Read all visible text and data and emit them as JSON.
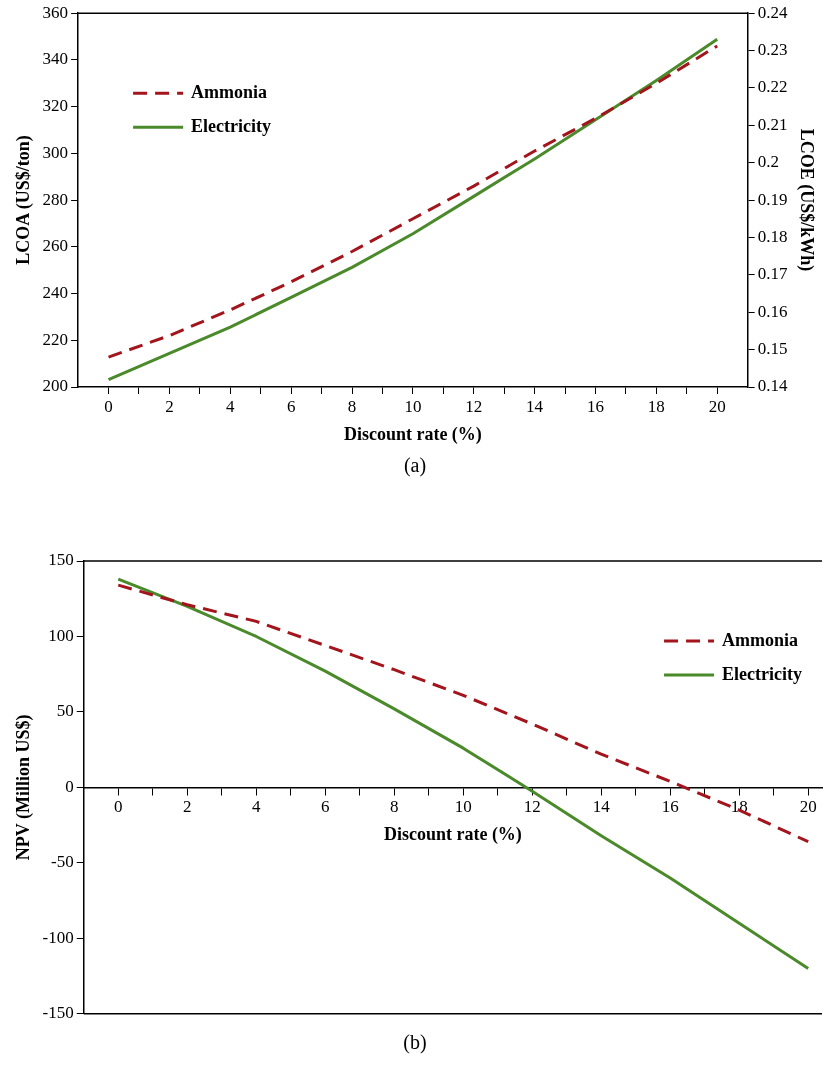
{
  "chart_data": [
    {
      "type": "line",
      "annotations": [
        "(a)"
      ],
      "xlabel": "Discount rate (%)",
      "ylabel": "LCOA (US$/ton)",
      "y2label": "LCOE (US$/kWh)",
      "x": [
        0,
        2,
        4,
        6,
        8,
        10,
        12,
        14,
        16,
        18,
        20
      ],
      "xlim": [
        -1,
        21
      ],
      "xticks": [
        0,
        {
          "value": 1,
          "label": null
        },
        2,
        {
          "value": 3,
          "label": null
        },
        4,
        {
          "value": 5,
          "label": null
        },
        6,
        {
          "value": 7,
          "label": null
        },
        8,
        {
          "value": 9,
          "label": null
        },
        10,
        {
          "value": 11,
          "label": null
        },
        12,
        {
          "value": 13,
          "label": null
        },
        14,
        {
          "value": 15,
          "label": null
        },
        16,
        {
          "value": 17,
          "label": null
        },
        18,
        {
          "value": 19,
          "label": null
        },
        20
      ],
      "ylim": [
        200,
        360
      ],
      "yticks": [
        200,
        220,
        240,
        260,
        280,
        300,
        320,
        340,
        360
      ],
      "y2lim": [
        0.14,
        0.24
      ],
      "y2ticks": [
        0.14,
        0.15,
        0.16,
        0.17,
        0.18,
        0.19,
        0.2,
        0.21,
        0.22,
        0.23,
        0.24
      ],
      "legend": "top left",
      "grid": false,
      "marker": "none",
      "series": [
        {
          "name": "Ammonia",
          "color": "#a3151d",
          "line_style": "dashed",
          "values": [
            212.8,
            222,
            233,
            245,
            258,
            272,
            286,
            301,
            315,
            330,
            346
          ]
        },
        {
          "name": "Electricity",
          "color": "#4a8a2a",
          "line_style": "solid",
          "axis": "y2",
          "values": [
            0.142,
            0.149,
            0.156,
            0.164,
            0.172,
            0.181,
            0.191,
            0.201,
            0.2115,
            0.222,
            0.233
          ]
        }
      ]
    },
    {
      "type": "line",
      "annotations": [
        "(b)"
      ],
      "xlabel": "Discount rate (%)",
      "ylabel": "NPV (Million US$)",
      "x": [
        0,
        2,
        4,
        6,
        8,
        10,
        12,
        14,
        16,
        18,
        20
      ],
      "xlim": [
        -1,
        20.4
      ],
      "xticks": [
        0,
        {
          "value": 1,
          "label": null
        },
        2,
        {
          "value": 3,
          "label": null
        },
        4,
        {
          "value": 5,
          "label": null
        },
        6,
        {
          "value": 7,
          "label": null
        },
        8,
        {
          "value": 9,
          "label": null
        },
        10,
        {
          "value": 11,
          "label": null
        },
        12,
        {
          "value": 13,
          "label": null
        },
        14,
        {
          "value": 15,
          "label": null
        },
        16,
        {
          "value": 17,
          "label": null
        },
        18,
        {
          "value": 19,
          "label": null
        },
        20
      ],
      "ylim": [
        -150,
        150
      ],
      "yticks": [
        -150,
        -100,
        -50,
        0,
        50,
        100,
        150
      ],
      "legend": "top right",
      "grid": false,
      "marker": "none",
      "series": [
        {
          "name": "Ammonia",
          "color": "#a3151d",
          "line_style": "dashed",
          "values": [
            134,
            121,
            110,
            94,
            78,
            61,
            42,
            22,
            4,
            -15,
            -36
          ]
        },
        {
          "name": "Electricity",
          "color": "#4a8a2a",
          "line_style": "solid",
          "values": [
            138,
            120,
            100,
            77,
            52,
            26,
            -2.5,
            -32,
            -60,
            -90,
            -120
          ]
        }
      ]
    }
  ]
}
